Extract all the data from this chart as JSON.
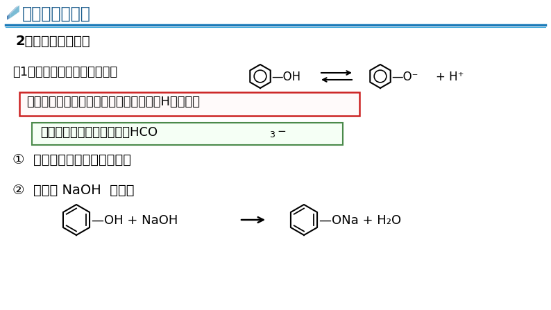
{
  "bg_color": "#ffffff",
  "title": "二、苯酚的性质",
  "title_color": "#1a5c8c",
  "title_line_color1": "#1a7ab8",
  "title_line_color2": "#2ca0d8",
  "subtitle": "2、苯酚的化学性质",
  "line1_left": "（1）有弱酸性，为一元弱酸：",
  "red_box_text": "有弱酸性的原因：受苯环的影响，羟基上H更活泼，",
  "green_box_text_left": "酸性：醋酸＞碳酸＞苯酚＞HCO",
  "green_box_sub": "3",
  "green_box_sup": "－",
  "item1": "①  苯酚不能使酸碱指示剂变色",
  "item2": "②  苯酚与 NaOH  反应：",
  "red_box_color": "#cc2222",
  "green_box_color": "#4a8a4a",
  "icon_color1": "#7bbcd5",
  "icon_color2": "#4a90c0",
  "icon_color3": "#2060a0"
}
